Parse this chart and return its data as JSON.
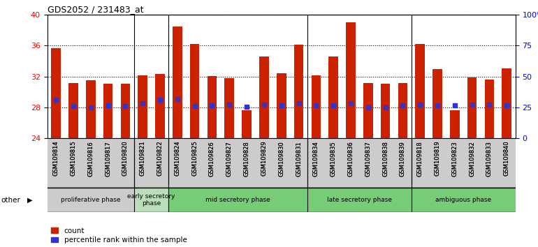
{
  "title": "GDS2052 / 231483_at",
  "samples": [
    "GSM109814",
    "GSM109815",
    "GSM109816",
    "GSM109817",
    "GSM109820",
    "GSM109821",
    "GSM109822",
    "GSM109824",
    "GSM109825",
    "GSM109826",
    "GSM109827",
    "GSM109828",
    "GSM109829",
    "GSM109830",
    "GSM109831",
    "GSM109834",
    "GSM109835",
    "GSM109836",
    "GSM109837",
    "GSM109838",
    "GSM109839",
    "GSM109818",
    "GSM109819",
    "GSM109823",
    "GSM109832",
    "GSM109833",
    "GSM109840"
  ],
  "counts": [
    35.7,
    31.2,
    31.5,
    31.1,
    31.1,
    32.2,
    32.3,
    38.5,
    36.2,
    32.1,
    31.8,
    27.6,
    34.6,
    32.4,
    36.1,
    32.2,
    34.6,
    39.0,
    31.2,
    31.1,
    31.2,
    36.2,
    33.0,
    27.6,
    31.9,
    31.6,
    33.1
  ],
  "percentile_vals": [
    29.0,
    28.2,
    28.0,
    28.3,
    28.2,
    28.5,
    29.0,
    29.1,
    28.2,
    28.3,
    28.4,
    28.1,
    28.4,
    28.3,
    28.5,
    28.3,
    28.3,
    28.5,
    28.0,
    28.0,
    28.3,
    28.4,
    28.3,
    28.3,
    28.4,
    28.4,
    28.3
  ],
  "bar_bottom": 24,
  "ylim_left": [
    24,
    40
  ],
  "ylim_right": [
    0,
    100
  ],
  "yticks_left": [
    24,
    28,
    32,
    36,
    40
  ],
  "yticks_right": [
    0,
    25,
    50,
    75,
    100
  ],
  "yticklabels_right": [
    "0",
    "25",
    "50",
    "75",
    "100%"
  ],
  "bar_color": "#cc2200",
  "dot_color": "#3333cc",
  "tick_area_color": "#cccccc",
  "phases": [
    {
      "label": "proliferative phase",
      "start": 0,
      "end": 5,
      "color": "#cccccc"
    },
    {
      "label": "early secretory\nphase",
      "start": 5,
      "end": 7,
      "color": "#bbddbb"
    },
    {
      "label": "mid secretory phase",
      "start": 7,
      "end": 15,
      "color": "#77cc77"
    },
    {
      "label": "late secretory phase",
      "start": 15,
      "end": 21,
      "color": "#77cc77"
    },
    {
      "label": "ambiguous phase",
      "start": 21,
      "end": 27,
      "color": "#77cc77"
    }
  ],
  "phase_separators": [
    5,
    7,
    15,
    21
  ],
  "other_label": "other",
  "legend_count_label": "count",
  "legend_pct_label": "percentile rank within the sample"
}
